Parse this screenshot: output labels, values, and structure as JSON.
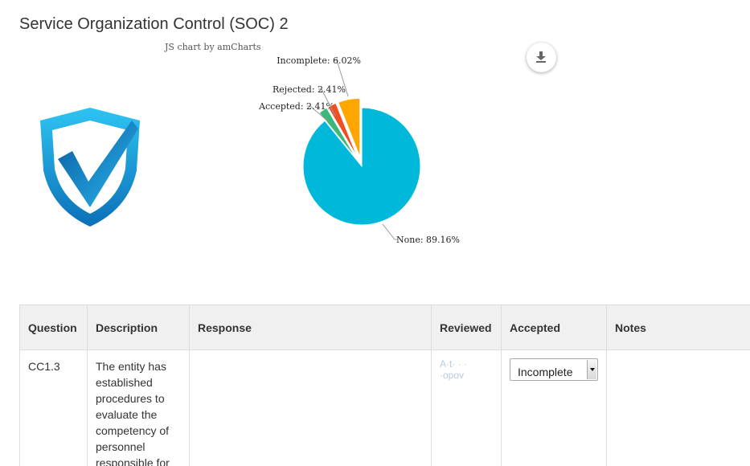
{
  "page": {
    "title": "Service Organization Control (SOC) 2"
  },
  "chart_credit": "JS chart by amCharts",
  "chart_data": {
    "type": "pie",
    "title": "",
    "slices": [
      {
        "name": "None",
        "value": 89.16,
        "label": "None: 89.16%",
        "color": "#00b8d9",
        "pulled": false
      },
      {
        "name": "Accepted",
        "value": 2.41,
        "label": "Accepted: 2.41%",
        "color": "#3cb878",
        "pulled": true
      },
      {
        "name": "Rejected",
        "value": 2.41,
        "label": "Rejected: 2.41%",
        "color": "#f04e23",
        "pulled": true
      },
      {
        "name": "Incomplete",
        "value": 6.02,
        "label": "Incomplete: 6.02%",
        "color": "#ffa600",
        "pulled": true
      }
    ],
    "legend": "none"
  },
  "download_icon": "download-icon",
  "table": {
    "headers": {
      "question": "Question",
      "description": "Description",
      "response": "Response",
      "reviewed": "Reviewed",
      "accepted": "Accepted",
      "notes": "Notes"
    },
    "rows": [
      {
        "question": "CC1.3",
        "description": "The entity has established procedures to evaluate the competency of personnel responsible for",
        "response": "",
        "reviewed": "A·t· · · ·opov",
        "accepted": "Incomplete",
        "notes": ""
      }
    ]
  }
}
